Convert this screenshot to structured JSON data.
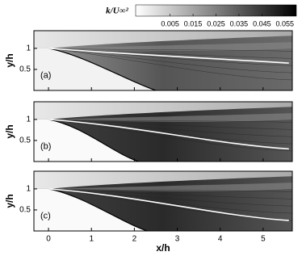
{
  "chart_data": {
    "type": "contour",
    "colorbar_title": "k/U∞²",
    "clim": [
      -0.01,
      0.06
    ],
    "cticks": [
      0.005,
      0.015,
      0.025,
      0.035,
      0.045,
      0.055
    ],
    "xlabel": "x/h",
    "ylabel": "y/h",
    "xlim": [
      -0.34,
      5.68
    ],
    "xticks": [
      0,
      1,
      2,
      3,
      4,
      5
    ],
    "ylim": [
      0,
      1.42
    ],
    "yticks": [
      0.5,
      1
    ],
    "panels": [
      "(a)",
      "(b)",
      "(c)"
    ]
  }
}
